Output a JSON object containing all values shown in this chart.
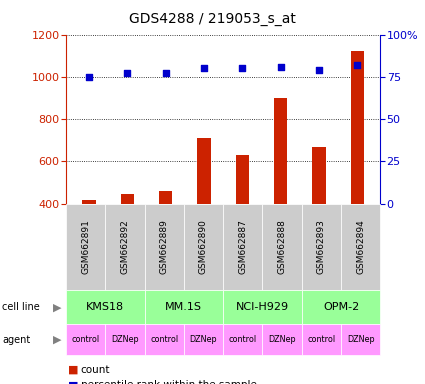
{
  "title": "GDS4288 / 219053_s_at",
  "samples": [
    "GSM662891",
    "GSM662892",
    "GSM662889",
    "GSM662890",
    "GSM662887",
    "GSM662888",
    "GSM662893",
    "GSM662894"
  ],
  "counts": [
    415,
    447,
    457,
    710,
    630,
    900,
    668,
    1120
  ],
  "percentile_ranks": [
    75,
    77,
    77,
    80,
    80,
    81,
    79,
    82
  ],
  "cell_lines": [
    {
      "label": "KMS18",
      "cols": [
        0,
        1
      ]
    },
    {
      "label": "MM.1S",
      "cols": [
        2,
        3
      ]
    },
    {
      "label": "NCI-H929",
      "cols": [
        4,
        5
      ]
    },
    {
      "label": "OPM-2",
      "cols": [
        6,
        7
      ]
    }
  ],
  "agents": [
    "control",
    "DZNep",
    "control",
    "DZNep",
    "control",
    "DZNep",
    "control",
    "DZNep"
  ],
  "bar_color": "#cc2200",
  "dot_color": "#0000cc",
  "cell_line_color": "#99ff99",
  "agent_color": "#ff99ff",
  "sample_box_color": "#cccccc",
  "ylim_left": [
    400,
    1200
  ],
  "yticks_left": [
    400,
    600,
    800,
    1000,
    1200
  ],
  "ylim_right": [
    0,
    100
  ],
  "yticks_right": [
    0,
    25,
    50,
    75,
    100
  ],
  "ylabel_left_color": "#cc2200",
  "ylabel_right_color": "#0000cc",
  "fig_width": 4.25,
  "fig_height": 3.84,
  "dpi": 100
}
